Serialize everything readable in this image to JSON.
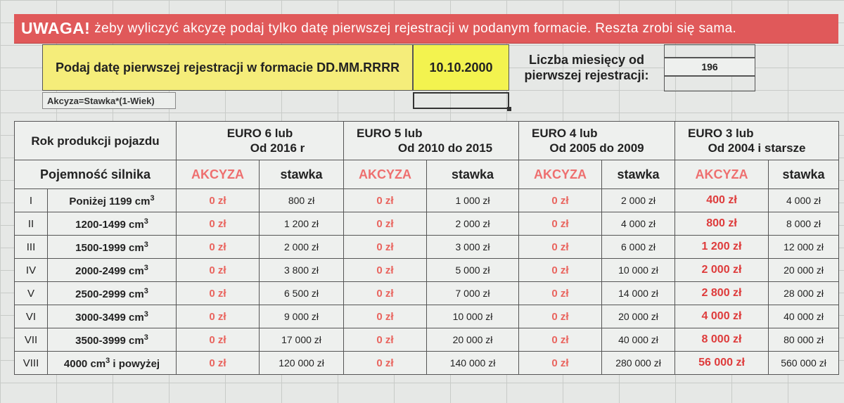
{
  "banner": {
    "warning": "UWAGA!",
    "message": "żeby wyliczyć akcyzę podaj tylko datę pierwszej rejestracji w podanym formacie. Reszta zrobi się sama."
  },
  "input": {
    "label": "Podaj datę pierwszej rejestracji w formacie DD.MM.RRRR",
    "date_value": "10.10.2000",
    "months_label_line1": "Liczba miesięcy od",
    "months_label_line2": "pierwszej rejestracji:",
    "months_value": "196"
  },
  "formula": "Akcyza=Stawka*(1-Wiek)",
  "table": {
    "year_header": "Rok produkcji pojazdu",
    "engine_header": "Pojemność silnika",
    "groups": [
      {
        "line1": "EURO 6 lub",
        "line2": "Od 2016 r"
      },
      {
        "line1": "EURO 5 lub",
        "line2": "Od 2010 do 2015"
      },
      {
        "line1": "EURO 4 lub",
        "line2": "Od 2005 do 2009"
      },
      {
        "line1": "EURO 3 lub",
        "line2": "Od 2004 i starsze"
      }
    ],
    "col_akcyza": "AKCYZA",
    "col_stawka": "stawka",
    "rows": [
      {
        "roman": "I",
        "cap_pre": "Poniżej 1199 cm",
        "cap_sup": "3",
        "cap_post": "",
        "c": [
          "0 zł",
          "800 zł",
          "0 zł",
          "1 000 zł",
          "0 zł",
          "2 000 zł",
          "400 zł",
          "4 000 zł"
        ]
      },
      {
        "roman": "II",
        "cap_pre": "1200-1499 cm",
        "cap_sup": "3",
        "cap_post": "",
        "c": [
          "0 zł",
          "1 200 zł",
          "0 zł",
          "2 000 zł",
          "0 zł",
          "4 000 zł",
          "800 zł",
          "8 000 zł"
        ]
      },
      {
        "roman": "III",
        "cap_pre": "1500-1999 cm",
        "cap_sup": "3",
        "cap_post": "",
        "c": [
          "0 zł",
          "2 000 zł",
          "0 zł",
          "3 000 zł",
          "0 zł",
          "6 000 zł",
          "1 200 zł",
          "12 000 zł"
        ]
      },
      {
        "roman": "IV",
        "cap_pre": "2000-2499 cm",
        "cap_sup": "3",
        "cap_post": "",
        "c": [
          "0 zł",
          "3 800 zł",
          "0 zł",
          "5 000 zł",
          "0 zł",
          "10 000 zł",
          "2 000 zł",
          "20 000 zł"
        ]
      },
      {
        "roman": "V",
        "cap_pre": "2500-2999 cm",
        "cap_sup": "3",
        "cap_post": "",
        "c": [
          "0 zł",
          "6 500 zł",
          "0 zł",
          "7 000 zł",
          "0 zł",
          "14 000 zł",
          "2 800 zł",
          "28 000 zł"
        ]
      },
      {
        "roman": "VI",
        "cap_pre": "3000-3499 cm",
        "cap_sup": "3",
        "cap_post": "",
        "c": [
          "0 zł",
          "9 000 zł",
          "0 zł",
          "10 000 zł",
          "0 zł",
          "20 000 zł",
          "4 000 zł",
          "40 000 zł"
        ]
      },
      {
        "roman": "VII",
        "cap_pre": "3500-3999 cm",
        "cap_sup": "3",
        "cap_post": "",
        "c": [
          "0 zł",
          "17 000 zł",
          "0 zł",
          "20 000 zł",
          "0 zł",
          "40 000 zł",
          "8 000 zł",
          "80 000 zł"
        ]
      },
      {
        "roman": "VIII",
        "cap_pre": "4000 cm",
        "cap_sup": "3",
        "cap_post": " i powyżej",
        "c": [
          "0 zł",
          "120 000 zł",
          "0 zł",
          "140 000 zł",
          "0 zł",
          "280 000 zł",
          "56 000 zł",
          "560 000 zł"
        ]
      }
    ]
  },
  "colors": {
    "banner_bg": "#e0595a",
    "input_bg": "#f5ed7a",
    "date_bg": "#f3f34f",
    "akcyza_text": "#ee6f6f",
    "red_value": "#de3b3b"
  }
}
